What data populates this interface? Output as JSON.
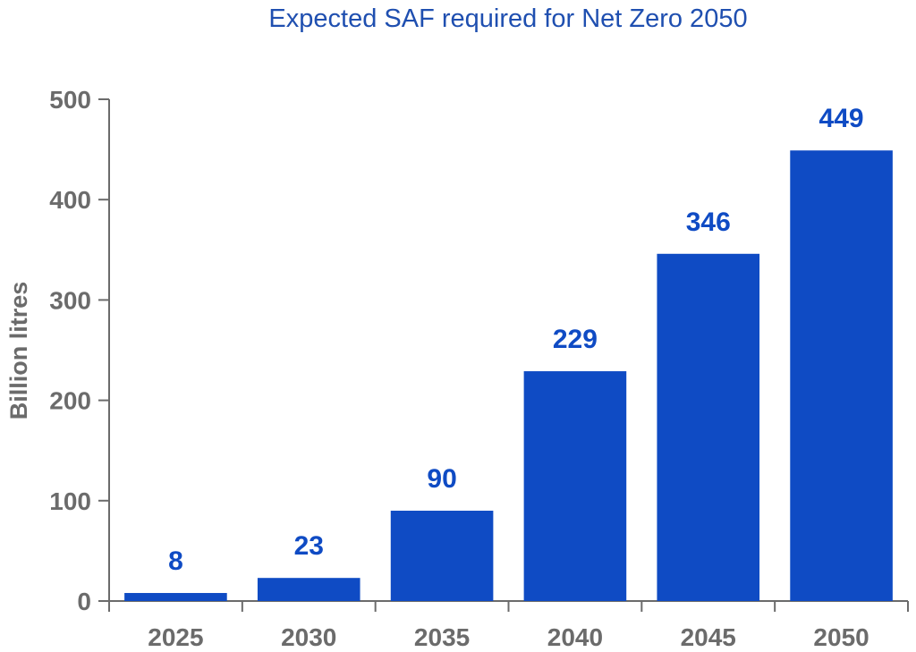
{
  "chart_data": {
    "type": "bar",
    "title": "Expected SAF required for Net Zero 2050",
    "xlabel": "",
    "ylabel": "Billion litres",
    "categories": [
      "2025",
      "2030",
      "2035",
      "2040",
      "2045",
      "2050"
    ],
    "values": [
      8,
      23,
      90,
      229,
      346,
      449
    ],
    "data_labels": [
      "8",
      "23",
      "90",
      "229",
      "346",
      "449"
    ],
    "ylim": [
      0,
      500
    ],
    "yticks": [
      0,
      100,
      200,
      300,
      400,
      500
    ],
    "ytick_labels": [
      "0",
      "100",
      "200",
      "300",
      "400",
      "500"
    ],
    "grid": false,
    "legend": "none",
    "bar_color": "#0f4bc4",
    "title_color": "#1f4fb0",
    "axis_color": "#6b6b6b"
  }
}
